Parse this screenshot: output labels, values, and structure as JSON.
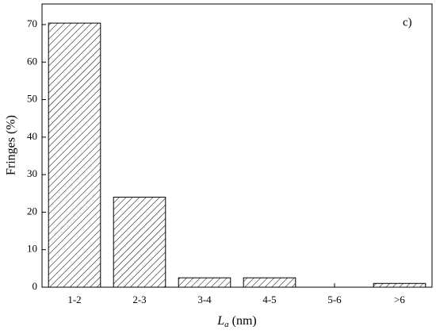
{
  "chart_data": {
    "type": "bar",
    "annotation": "c)",
    "y_label": "Fringes (%)",
    "x_label": {
      "symbol": "L",
      "subscript": "a",
      "unit": "(nm)"
    },
    "categories": [
      "1-2",
      "2-3",
      "3-4",
      "4-5",
      "5-6",
      ">6"
    ],
    "values": [
      70.4,
      24,
      2.5,
      2.5,
      0,
      1
    ],
    "color": "#000000",
    "ylim": [
      0,
      75.5
    ],
    "yticks": [
      0,
      10,
      20,
      30,
      40,
      50,
      60,
      70
    ],
    "grid": false
  }
}
